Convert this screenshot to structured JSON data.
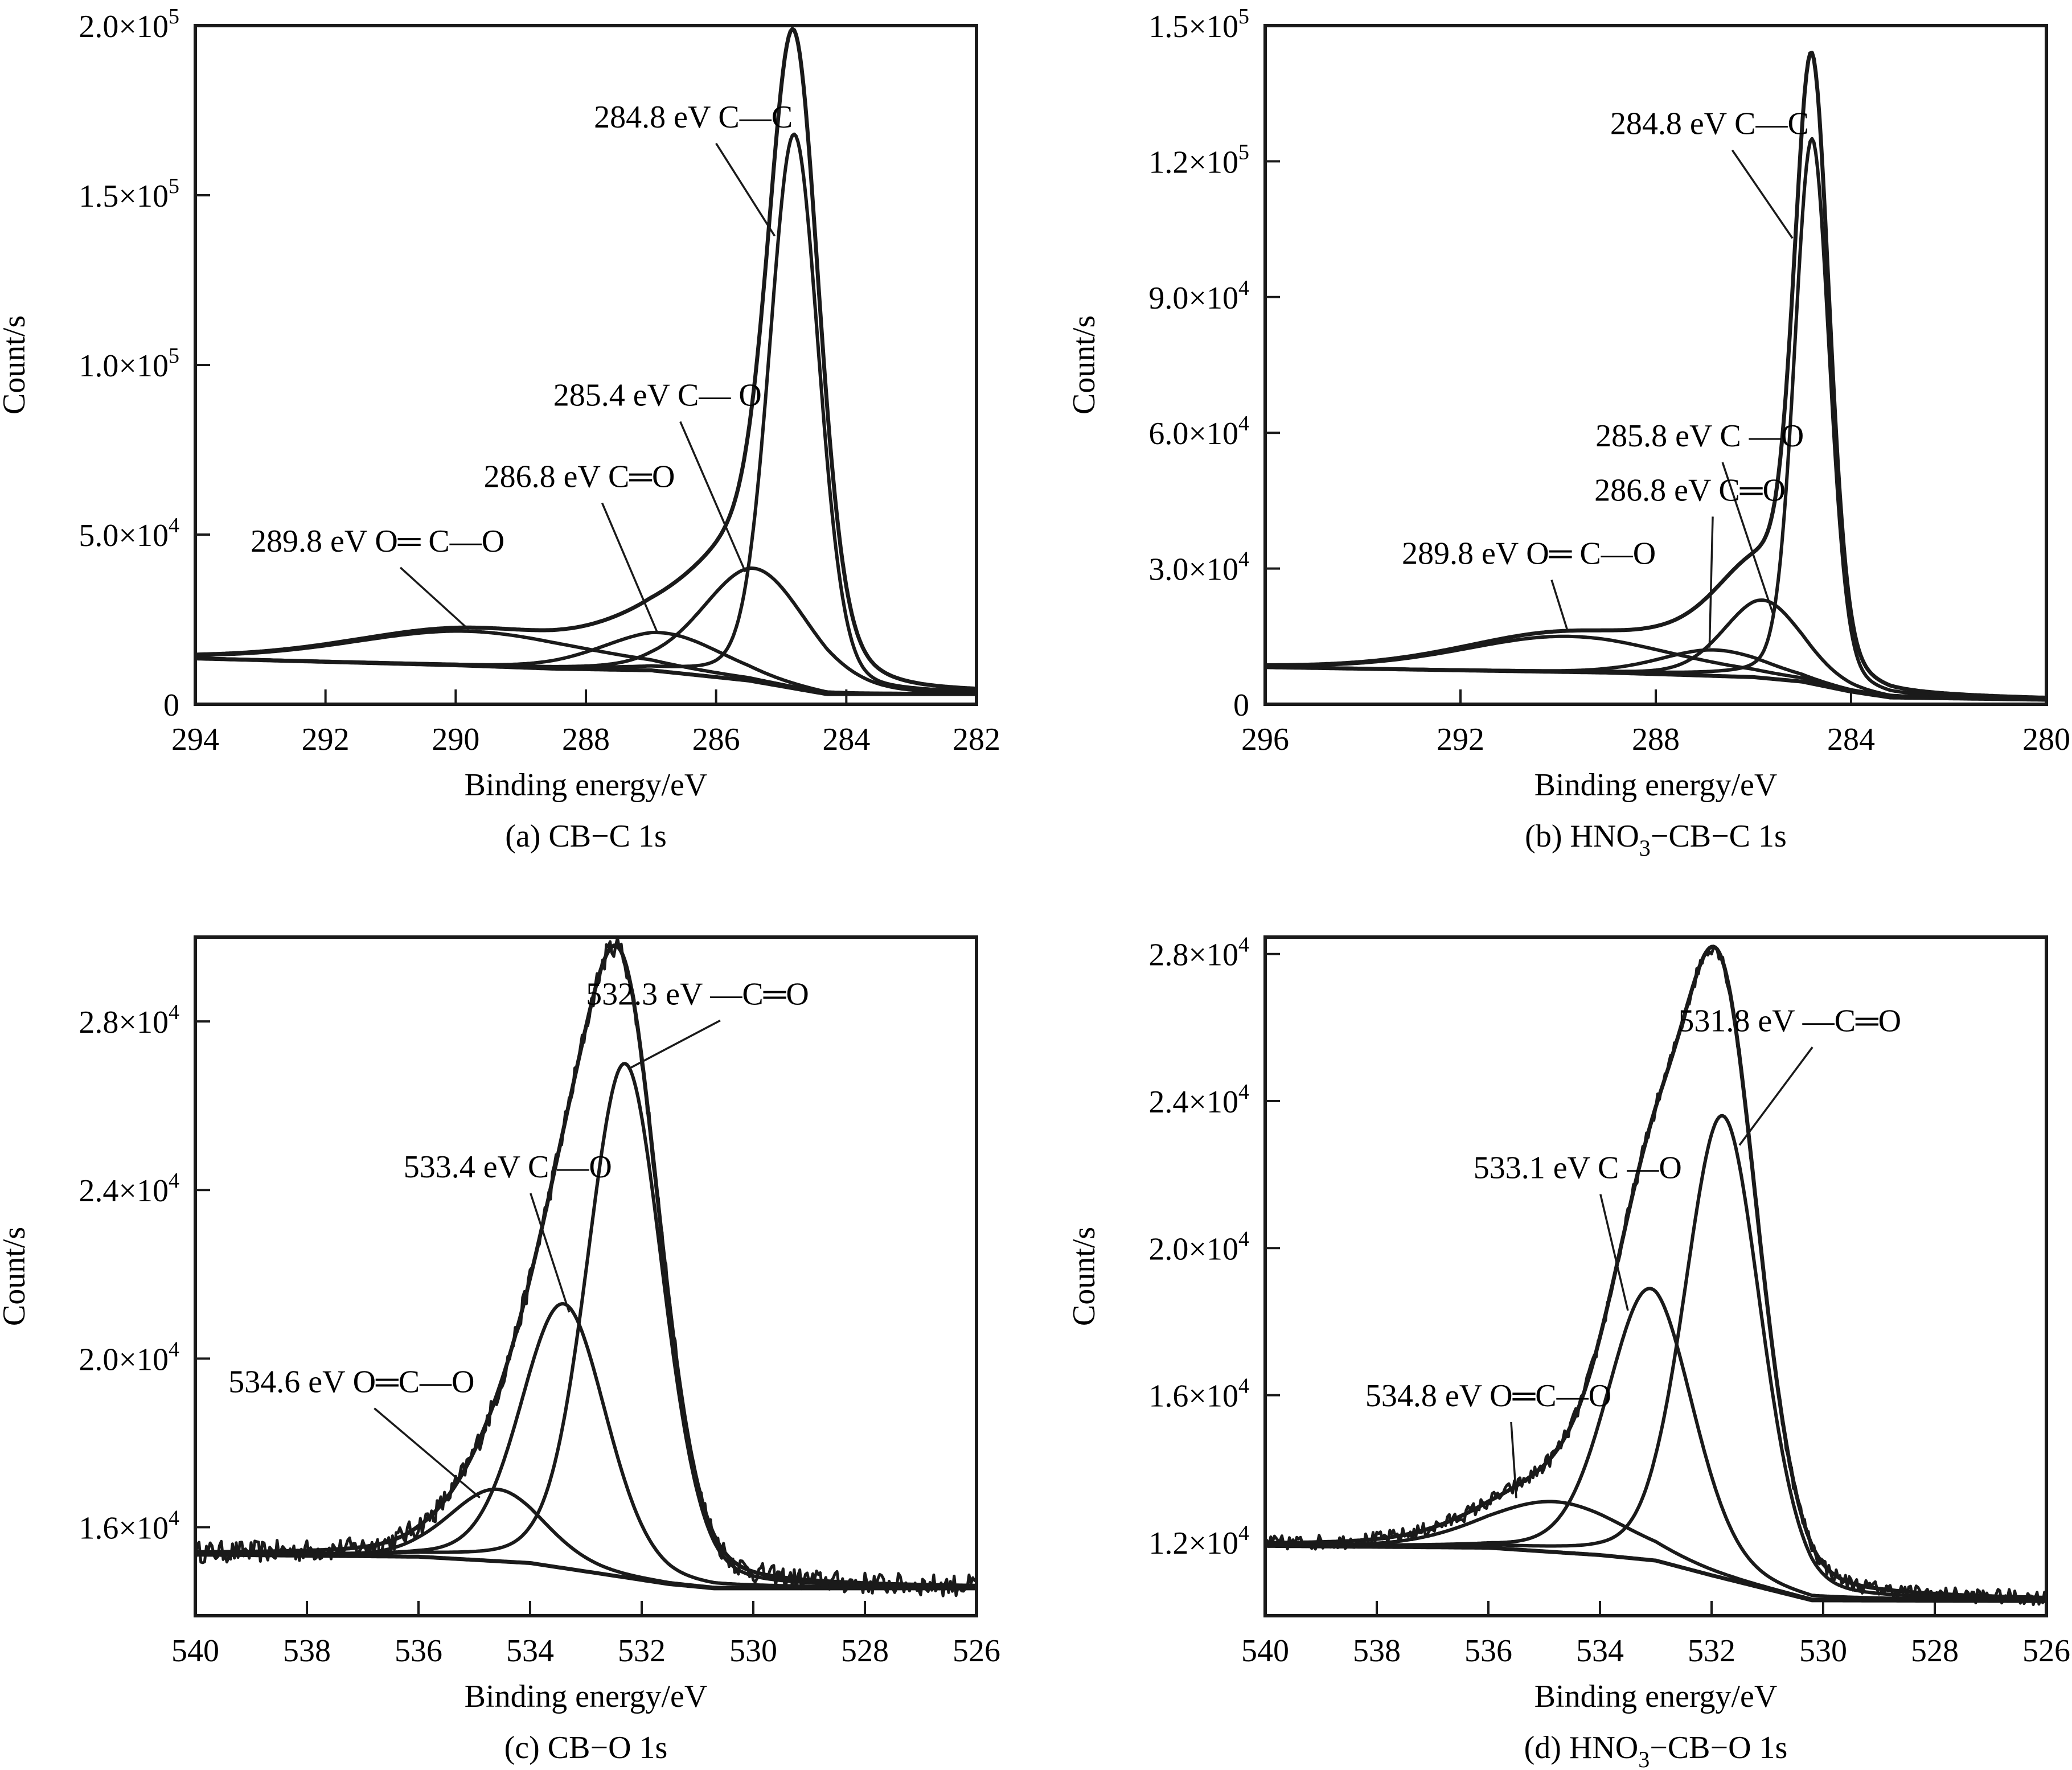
{
  "figure": {
    "panels_count": 4
  },
  "chart_data": [
    {
      "id": "a",
      "type": "line",
      "caption": "(a) CB−C 1s",
      "caption_parts": {
        "prefix": "(a) CB−C 1s",
        "sub": "",
        "suffix": ""
      },
      "xlabel": "Binding energy/eV",
      "ylabel": "Count/s",
      "xlim": [
        294,
        282
      ],
      "ylim": [
        0,
        200000
      ],
      "xticks": [
        294,
        292,
        290,
        288,
        286,
        284,
        282
      ],
      "yticks": [
        {
          "value": 0,
          "label": "0"
        },
        {
          "value": 50000,
          "mant": "5.0",
          "exp": "4"
        },
        {
          "value": 100000,
          "mant": "1.0",
          "exp": "5"
        },
        {
          "value": 150000,
          "mant": "1.5",
          "exp": "5"
        },
        {
          "value": 200000,
          "mant": "2.0",
          "exp": "5"
        }
      ],
      "grid": false,
      "background": {
        "x": [
          294,
          290,
          288.5,
          287,
          285.5,
          284.3,
          283.8,
          282
        ],
        "y": [
          13500,
          11500,
          10500,
          10000,
          7000,
          3000,
          3000,
          3000
        ]
      },
      "noise": 0,
      "components": [
        {
          "name": "C—C",
          "center_eV": 284.8,
          "peak_counts": 168000,
          "fwhm_eV": 0.9,
          "label": "284.8 eV C—C"
        },
        {
          "name": "C—O",
          "center_eV": 285.4,
          "peak_counts": 40000,
          "fwhm_eV": 1.9,
          "label": "285.4 eV C— O"
        },
        {
          "name": "C=O",
          "center_eV": 286.8,
          "peak_counts": 21000,
          "fwhm_eV": 2.2,
          "label": "286.8 eV C═O"
        },
        {
          "name": "O=C—O",
          "center_eV": 289.8,
          "peak_counts": 21500,
          "fwhm_eV": 4.2,
          "label": "289.8 eV O═ C—O"
        }
      ],
      "envelope_peak_counts": 199000,
      "annotations": [
        {
          "text": "284.8 eV C—C",
          "text_eV": 286.35,
          "text_counts": 170000,
          "target_eV": 285.1,
          "target_counts": 138000
        },
        {
          "text": "285.4 eV C— O",
          "text_eV": 286.9,
          "text_counts": 88000,
          "target_eV": 285.55,
          "target_counts": 39000
        },
        {
          "text": "286.8 eV C═O",
          "text_eV": 288.1,
          "text_counts": 64000,
          "target_eV": 286.9,
          "target_counts": 21000
        },
        {
          "text": "289.8 eV O═ C—O",
          "text_eV": 291.2,
          "text_counts": 45000,
          "target_eV": 289.8,
          "target_counts": 22000
        }
      ]
    },
    {
      "id": "b",
      "type": "line",
      "caption": "(b) HNO3−CB−C 1s",
      "caption_parts": {
        "prefix": "(b) HNO",
        "sub": "3",
        "suffix": "−CB−C 1s"
      },
      "xlabel": "Binding energy/eV",
      "ylabel": "Count/s",
      "xlim": [
        296,
        280
      ],
      "ylim": [
        0,
        150000
      ],
      "xticks": [
        296,
        292,
        288,
        284,
        280
      ],
      "yticks": [
        {
          "value": 0,
          "label": "0"
        },
        {
          "value": 30000,
          "mant": "3.0",
          "exp": "4"
        },
        {
          "value": 60000,
          "mant": "6.0",
          "exp": "4"
        },
        {
          "value": 90000,
          "mant": "9.0",
          "exp": "4"
        },
        {
          "value": 120000,
          "mant": "1.2",
          "exp": "5"
        },
        {
          "value": 150000,
          "mant": "1.5",
          "exp": "5"
        }
      ],
      "grid": false,
      "background": {
        "x": [
          296,
          292,
          289,
          286,
          285,
          284,
          283.2,
          280
        ],
        "y": [
          8200,
          7500,
          7000,
          6000,
          5000,
          2800,
          1500,
          1000
        ]
      },
      "noise": 0,
      "components": [
        {
          "name": "C—C",
          "center_eV": 284.8,
          "peak_counts": 125000,
          "fwhm_eV": 0.85,
          "label": "284.8 eV C—C"
        },
        {
          "name": "C—O",
          "center_eV": 285.8,
          "peak_counts": 23000,
          "fwhm_eV": 1.9,
          "label": "285.8 eV C —O"
        },
        {
          "name": "C=O",
          "center_eV": 286.8,
          "peak_counts": 12000,
          "fwhm_eV": 2.6,
          "label": "286.8 eV C═O"
        },
        {
          "name": "O=C—O",
          "center_eV": 289.8,
          "peak_counts": 15000,
          "fwhm_eV": 5.0,
          "label": "289.8 eV O═ C—O"
        }
      ],
      "envelope_peak_counts": 144000,
      "annotations": [
        {
          "text": "284.8 eV C—C",
          "text_eV": 286.9,
          "text_counts": 126000,
          "target_eV": 285.2,
          "target_counts": 103000
        },
        {
          "text": "285.8 eV C —O",
          "text_eV": 287.1,
          "text_counts": 57000,
          "target_eV": 285.6,
          "target_counts": 20000
        },
        {
          "text": "286.8 eV C═O",
          "text_eV": 287.3,
          "text_counts": 45000,
          "target_eV": 286.9,
          "target_counts": 12500
        },
        {
          "text": "289.8 eV O═ C—O",
          "text_eV": 290.6,
          "text_counts": 31000,
          "target_eV": 289.8,
          "target_counts": 16000
        }
      ]
    },
    {
      "id": "c",
      "type": "line",
      "caption": "(c) CB−O 1s",
      "caption_parts": {
        "prefix": "(c) CB−O 1s",
        "sub": "",
        "suffix": ""
      },
      "xlabel": "Binding energy/eV",
      "ylabel": "Count/s",
      "xlim": [
        540,
        526
      ],
      "ylim": [
        13900,
        30000
      ],
      "xticks": [
        540,
        538,
        536,
        534,
        532,
        530,
        528,
        526
      ],
      "yticks": [
        {
          "value": 16000,
          "mant": "1.6",
          "exp": "4"
        },
        {
          "value": 20000,
          "mant": "2.0",
          "exp": "4"
        },
        {
          "value": 24000,
          "mant": "2.4",
          "exp": "4"
        },
        {
          "value": 28000,
          "mant": "2.8",
          "exp": "4"
        }
      ],
      "grid": false,
      "background": {
        "x": [
          540,
          536,
          534,
          532.5,
          531.5,
          530.7,
          526
        ],
        "y": [
          15350,
          15300,
          15150,
          14850,
          14650,
          14550,
          14550
        ]
      },
      "noise": 260,
      "components": [
        {
          "name": "—C=O",
          "center_eV": 532.3,
          "peak_counts": 27000,
          "fwhm_eV": 1.6,
          "label": "532.3 eV —C═O"
        },
        {
          "name": "C—O",
          "center_eV": 533.4,
          "peak_counts": 21300,
          "fwhm_eV": 1.8,
          "label": "533.4 eV C —O"
        },
        {
          "name": "O=C—O",
          "center_eV": 534.6,
          "peak_counts": 16900,
          "fwhm_eV": 2.0,
          "label": "534.6 eV O═C—O"
        }
      ],
      "envelope_peak_counts": 29800,
      "annotations": [
        {
          "text": "532.3 eV    —C═O",
          "text_eV": 531.0,
          "text_counts": 28400,
          "target_eV": 532.2,
          "target_counts": 26900
        },
        {
          "text": "533.4 eV C —O",
          "text_eV": 534.4,
          "text_counts": 24300,
          "target_eV": 533.3,
          "target_counts": 21100
        },
        {
          "text": "534.6 eV O═C—O",
          "text_eV": 537.2,
          "text_counts": 19200,
          "target_eV": 534.9,
          "target_counts": 16700
        }
      ]
    },
    {
      "id": "d",
      "type": "line",
      "caption": "(d) HNO3−CB−O 1s",
      "caption_parts": {
        "prefix": "(d) HNO",
        "sub": "3",
        "suffix": "−CB−O 1s"
      },
      "xlabel": "Binding energy/eV",
      "ylabel": "Count/s",
      "xlim": [
        540,
        526
      ],
      "ylim": [
        10000,
        28460
      ],
      "xticks": [
        540,
        538,
        536,
        534,
        532,
        530,
        528,
        526
      ],
      "yticks": [
        {
          "value": 12000,
          "mant": "1.2",
          "exp": "4"
        },
        {
          "value": 16000,
          "mant": "1.6",
          "exp": "4"
        },
        {
          "value": 20000,
          "mant": "2.0",
          "exp": "4"
        },
        {
          "value": 24000,
          "mant": "2.4",
          "exp": "4"
        },
        {
          "value": 28000,
          "mant": "2.8",
          "exp": "4"
        }
      ],
      "grid": false,
      "background": {
        "x": [
          540,
          536,
          534,
          533,
          532,
          530.2,
          526
        ],
        "y": [
          11900,
          11850,
          11650,
          11500,
          11100,
          10420,
          10400
        ]
      },
      "noise": 200,
      "components": [
        {
          "name": "—C=O",
          "center_eV": 531.8,
          "peak_counts": 23600,
          "fwhm_eV": 1.6,
          "label": "531.8 eV —C═O"
        },
        {
          "name": "C—O",
          "center_eV": 533.1,
          "peak_counts": 18900,
          "fwhm_eV": 1.8,
          "label": "533.1 eV C —O"
        },
        {
          "name": "O=C—O",
          "center_eV": 534.8,
          "peak_counts": 13100,
          "fwhm_eV": 3.0,
          "label": "534.8 eV O═C—O"
        }
      ],
      "envelope_peak_counts": 28200,
      "annotations": [
        {
          "text": "531.8 eV    —C═O",
          "text_eV": 530.6,
          "text_counts": 25900,
          "target_eV": 531.5,
          "target_counts": 22800
        },
        {
          "text": "533.1 eV C —O",
          "text_eV": 534.4,
          "text_counts": 21900,
          "target_eV": 533.5,
          "target_counts": 18300
        },
        {
          "text": "534.8 eV O═C—O",
          "text_eV": 536.0,
          "text_counts": 15700,
          "target_eV": 535.5,
          "target_counts": 13200
        }
      ]
    }
  ]
}
